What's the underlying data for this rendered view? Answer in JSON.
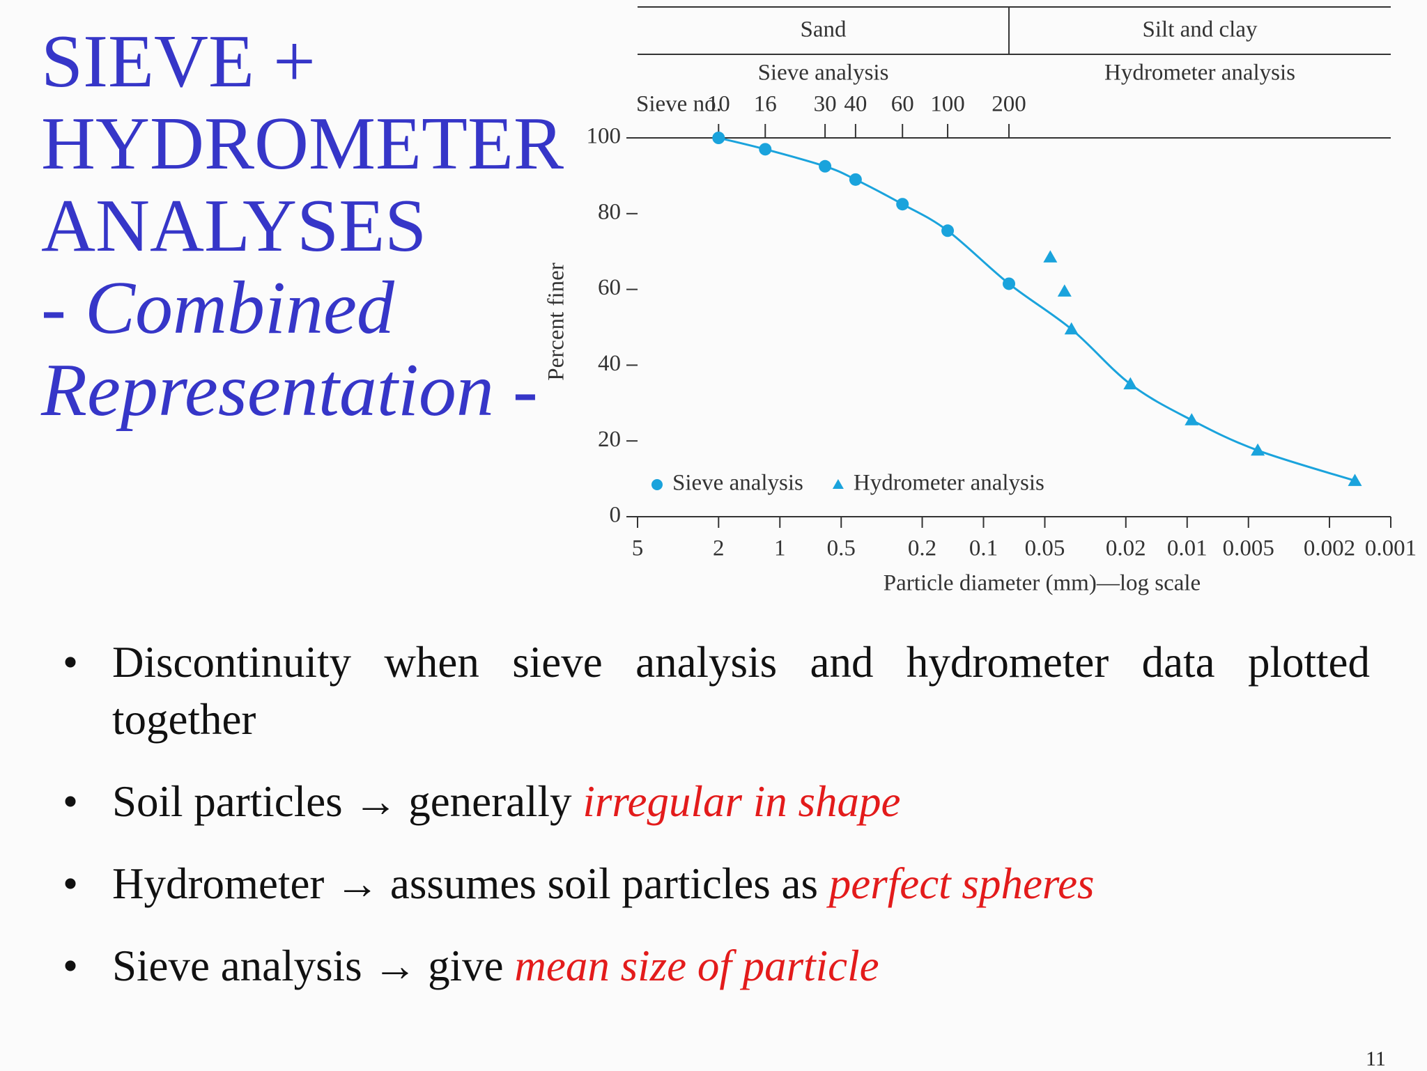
{
  "title": [
    "SIEVE +",
    "HYDROMETER",
    "ANALYSES"
  ],
  "subtitle": [
    "- Combined",
    "Representation -"
  ],
  "bullets": [
    [
      {
        "text": "Discontinuity when sieve analysis and hydrometer data plotted together"
      }
    ],
    [
      {
        "text": "Soil particles → generally "
      },
      {
        "text": "irregular in shape",
        "emphasis": true
      }
    ],
    [
      {
        "text": "Hydrometer → assumes soil particles as "
      },
      {
        "text": "perfect spheres",
        "emphasis": true
      }
    ],
    [
      {
        "text": "Sieve analysis → give "
      },
      {
        "text": "mean size of particle",
        "emphasis": true
      }
    ]
  ],
  "page_number": 11,
  "chart_data": {
    "type": "scatter",
    "soil_types": [
      "Sand",
      "Silt and clay"
    ],
    "methods": [
      "Sieve analysis",
      "Hydrometer analysis"
    ],
    "sieve_label": "Sieve no.",
    "sieve_numbers": [
      10,
      16,
      30,
      40,
      60,
      100,
      200
    ],
    "xlabel": "Particle diameter (mm)—log scale",
    "ylabel": "Percent finer",
    "xlog": true,
    "xlim": [
      5,
      0.001
    ],
    "xticks": [
      5,
      2,
      1,
      0.5,
      0.2,
      0.1,
      0.05,
      0.02,
      0.01,
      0.005,
      0.002,
      0.001
    ],
    "ylim": [
      0,
      100
    ],
    "yticks": [
      0,
      20,
      40,
      60,
      80,
      100
    ],
    "legend": "lower left",
    "curve_color": "#1aa3dc",
    "series": [
      {
        "name": "Sieve analysis",
        "marker": "circle",
        "color": "#1aa3dc",
        "x": [
          2,
          1.18,
          0.6,
          0.425,
          0.25,
          0.15,
          0.075
        ],
        "values": [
          100,
          97,
          92.5,
          89,
          82.5,
          75.5,
          61.5
        ]
      },
      {
        "name": "Hydrometer analysis",
        "marker": "triangle",
        "color": "#1aa3dc",
        "x": [
          0.047,
          0.04,
          0.037,
          0.019,
          0.0095,
          0.0045,
          0.0015
        ],
        "values": [
          68.5,
          59.5,
          49.5,
          35,
          25.5,
          17.5,
          9.5
        ]
      }
    ]
  }
}
